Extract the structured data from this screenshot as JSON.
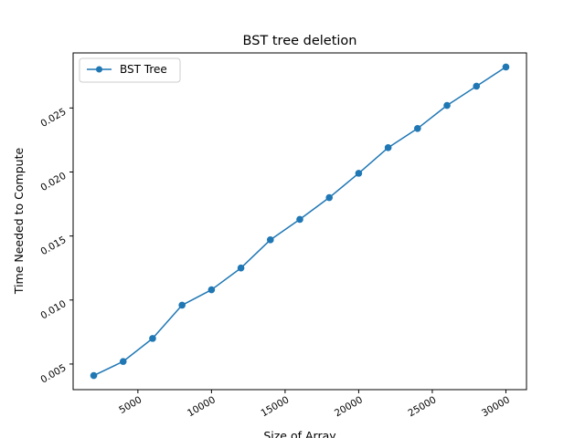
{
  "chart_data": {
    "type": "line",
    "title": "BST tree deletion",
    "xlabel": "Size of Array",
    "ylabel": "Time Needed to Compute",
    "xlim": [
      600,
      31400
    ],
    "ylim": [
      0.003,
      0.0293
    ],
    "xticks": [
      5000,
      10000,
      15000,
      20000,
      25000,
      30000
    ],
    "xtick_labels": [
      "5000",
      "10000",
      "15000",
      "20000",
      "25000",
      "30000"
    ],
    "yticks": [
      0.005,
      0.01,
      0.015,
      0.02,
      0.025
    ],
    "ytick_labels": [
      "0.005",
      "0.010",
      "0.015",
      "0.020",
      "0.025"
    ],
    "tick_label_rotation_deg": 30,
    "grid": false,
    "legend_position": "top-left",
    "series": [
      {
        "name": "BST Tree",
        "color": "#1f77b4",
        "marker": "circle",
        "x": [
          2000,
          4000,
          6000,
          8000,
          10000,
          12000,
          14000,
          16000,
          18000,
          20000,
          22000,
          24000,
          26000,
          28000,
          30000
        ],
        "y": [
          0.0041,
          0.0052,
          0.007,
          0.0096,
          0.0108,
          0.0125,
          0.0147,
          0.0163,
          0.018,
          0.0199,
          0.0219,
          0.0234,
          0.0252,
          0.0267,
          0.0282
        ]
      }
    ]
  }
}
